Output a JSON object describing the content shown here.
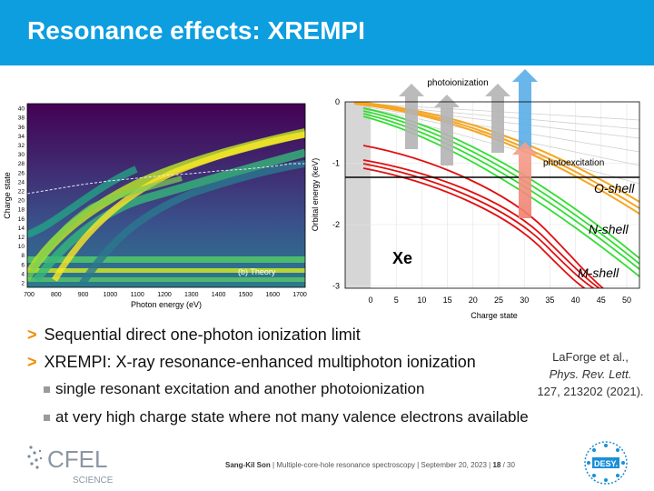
{
  "slide": {
    "title": "Resonance effects: XREMPI"
  },
  "left_plot": {
    "ylabel": "Charge state",
    "xlabel": "Photon energy (eV)",
    "panel_label": "(b) Theory",
    "yticks": [
      "2",
      "4",
      "6",
      "8",
      "10",
      "12",
      "14",
      "16",
      "18",
      "20",
      "22",
      "24",
      "26",
      "28",
      "30",
      "32",
      "34",
      "36",
      "38",
      "40"
    ],
    "xticks": [
      "700",
      "800",
      "900",
      "1000",
      "1100",
      "1200",
      "1300",
      "1400",
      "1500",
      "1600",
      "1700"
    ]
  },
  "right_plot": {
    "ylabel": "Orbital energy (keV)",
    "xlabel": "Charge state",
    "yticks": [
      "0",
      "-1",
      "-2",
      "-3"
    ],
    "xticks": [
      "0",
      "5",
      "10",
      "15",
      "20",
      "25",
      "30",
      "35",
      "40",
      "45",
      "50"
    ],
    "element": "Xe",
    "arrow_photoionization": "photoionization",
    "arrow_photoexcitation": "photoexcitation",
    "shell_o": "O-shell",
    "shell_n": "N-shell",
    "shell_m": "M-shell",
    "colors": {
      "o_shell": "#f5a623",
      "n_shell": "#33dd33",
      "m_shell": "#e01010",
      "arrow_gray": "#b0b0b0",
      "arrow_blue": "#5aaee8",
      "arrow_red": "#f07f6f"
    }
  },
  "bullets": [
    {
      "level": 1,
      "text": "Sequential direct one-photon ionization limit"
    },
    {
      "level": 1,
      "text": "XREMPI: X-ray resonance-enhanced multiphoton ionization"
    },
    {
      "level": 2,
      "text": "single resonant excitation and another photoionization"
    },
    {
      "level": 2,
      "text": "at very high charge state where not many valence electrons available"
    }
  ],
  "reference": {
    "line1": "LaForge et al.,",
    "line2": "Phys. Rev. Lett.",
    "line3": "127, 213202 (2021)."
  },
  "footer": {
    "author": "Sang-Kil Son",
    "talk": "Multiple-core-hole resonance spectroscopy",
    "date": "September 20, 2023",
    "page": "18",
    "total": "30"
  },
  "logos": {
    "cfel_top": "CFEL",
    "cfel_bottom": "SCIENCE",
    "desy": "DESY."
  }
}
